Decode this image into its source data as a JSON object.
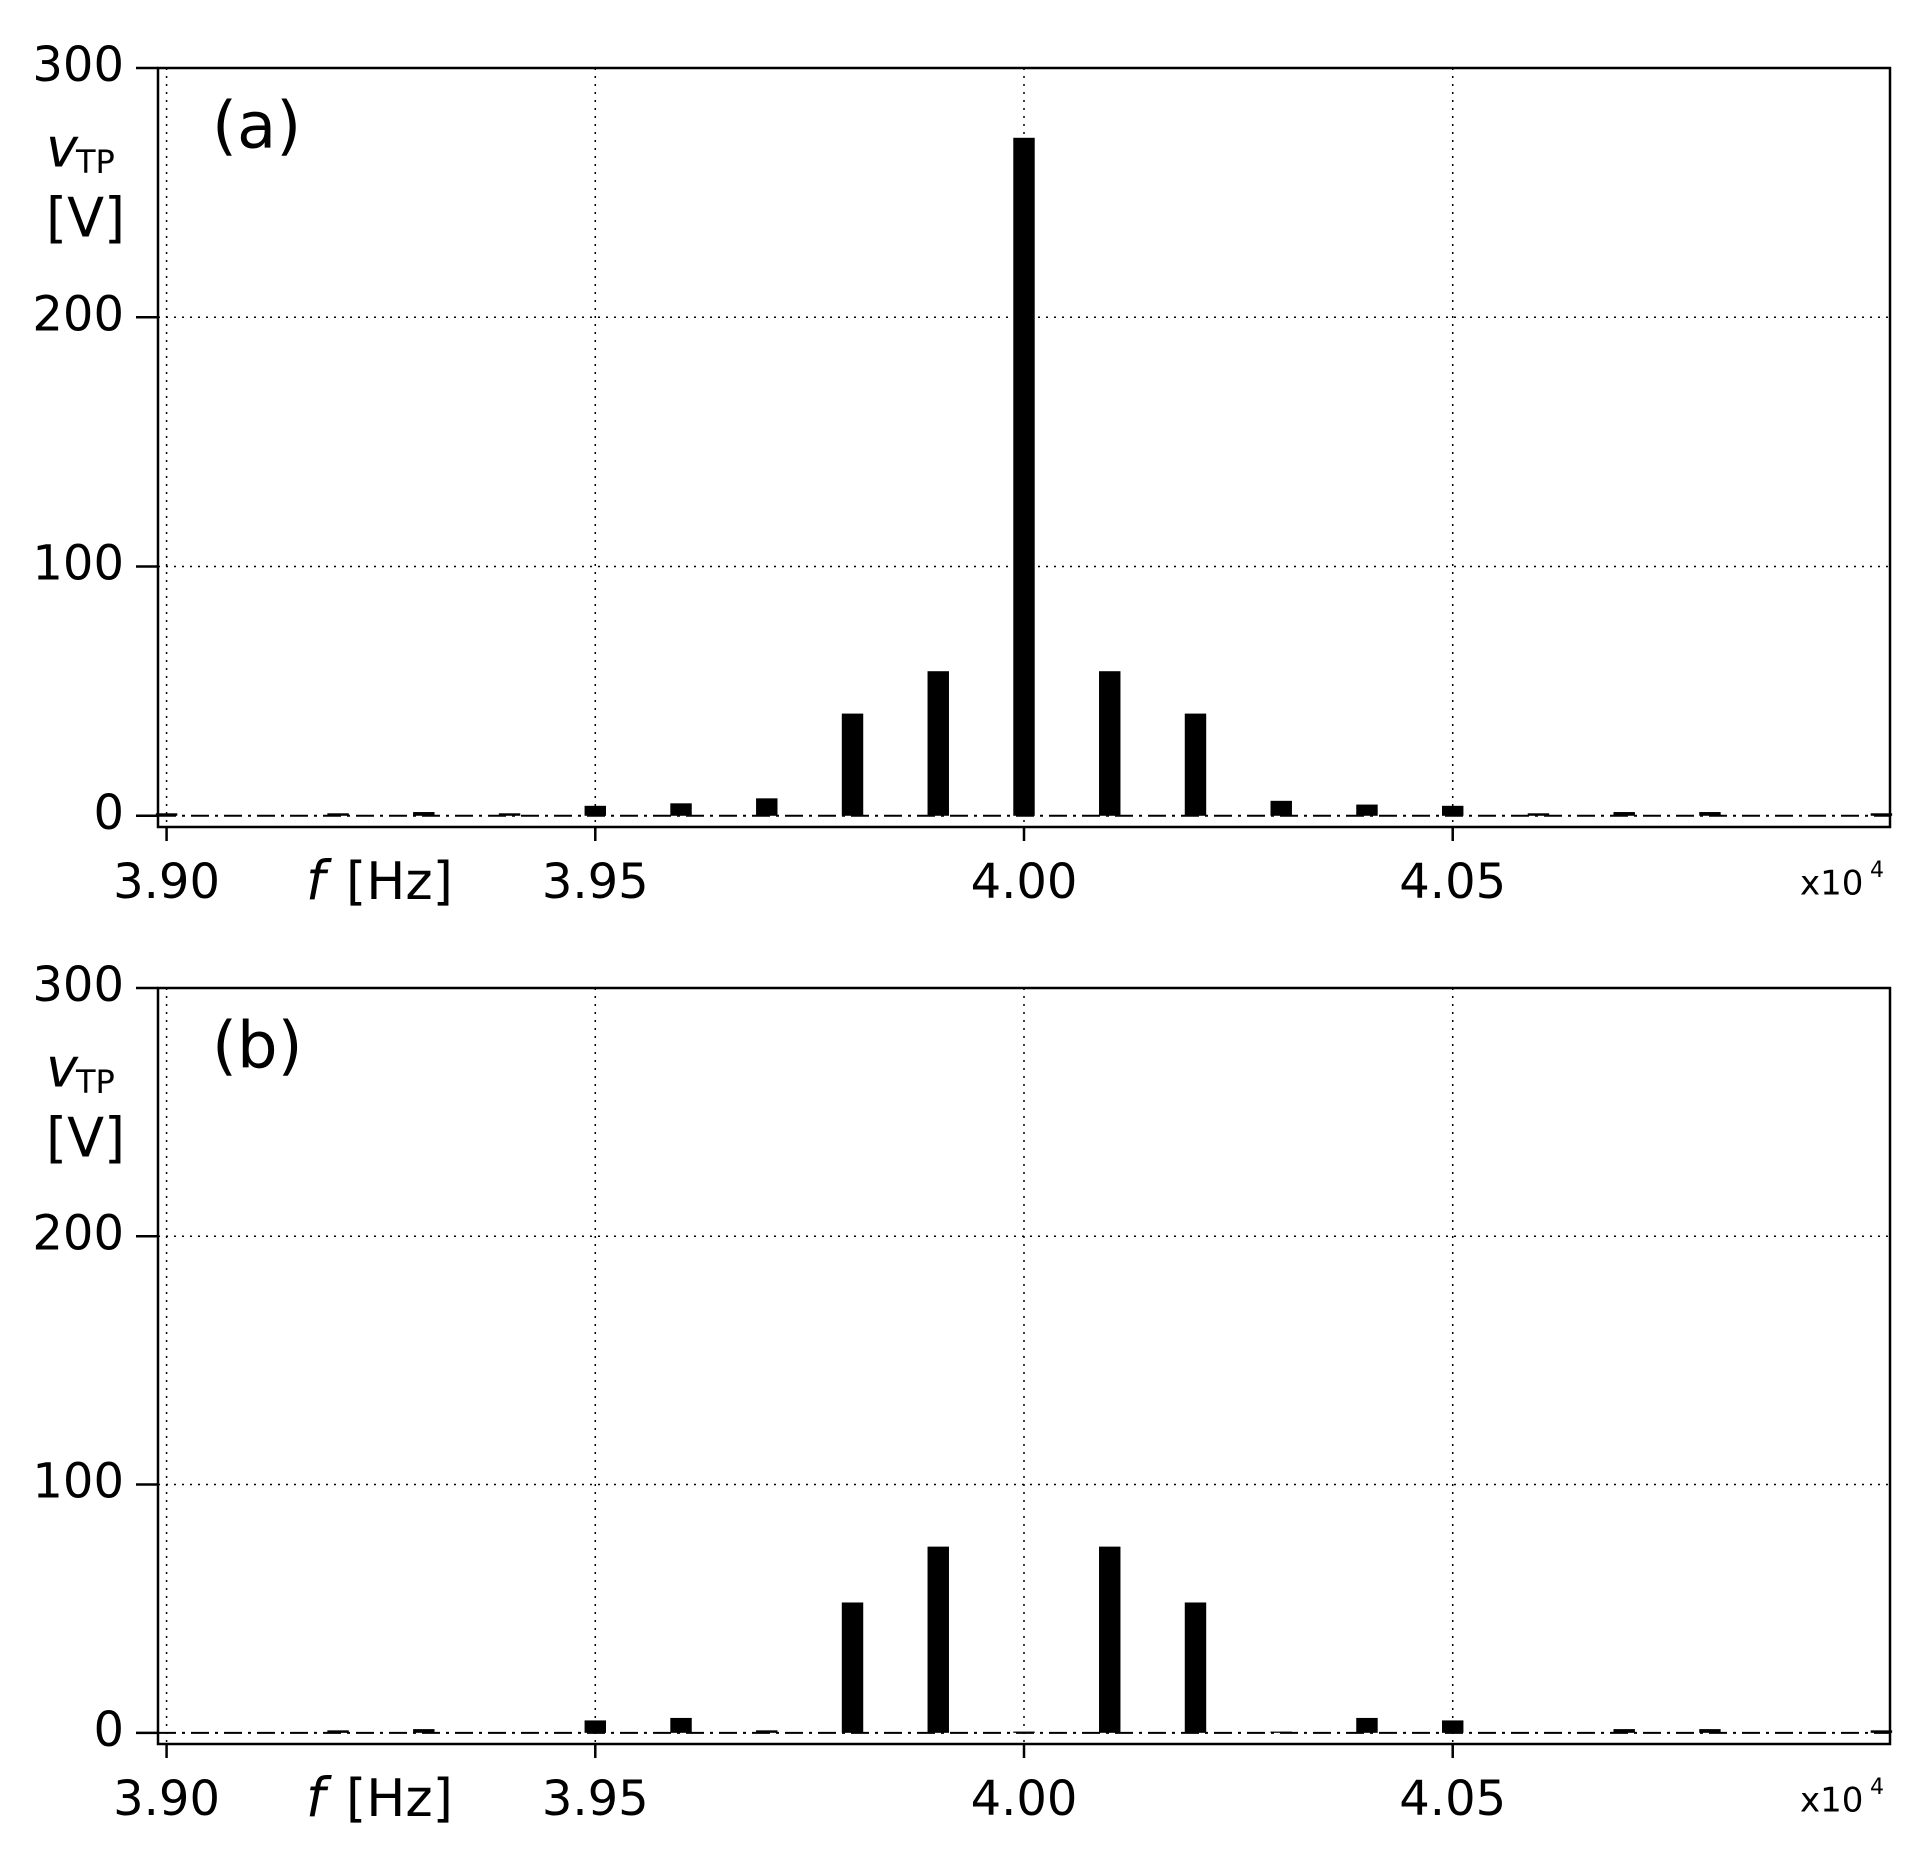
{
  "chart_data": [
    {
      "type": "bar",
      "annotation": "(a)",
      "ylabel": "v",
      "ylabel_sub": "TP",
      "ylabel_unit": "[V]",
      "xlabel": "f",
      "xlabel_unit": "[Hz]",
      "x_multiplier": "x10",
      "x_multiplier_exp": "4",
      "x": [
        3.9,
        3.91,
        3.92,
        3.93,
        3.94,
        3.95,
        3.96,
        3.97,
        3.98,
        3.99,
        4.0,
        4.01,
        4.02,
        4.03,
        4.04,
        4.05,
        4.06,
        4.07,
        4.08,
        4.09,
        4.1
      ],
      "values": [
        1,
        0,
        1,
        1.5,
        1,
        4,
        5,
        7,
        41,
        58,
        272,
        58,
        41,
        6,
        4.5,
        4,
        1,
        1.5,
        1.5,
        0,
        1
      ],
      "color": "#000000",
      "grid": true,
      "xlim": [
        3.899,
        4.101
      ],
      "ylim": [
        -4.5,
        300
      ],
      "xticks": [
        {
          "value": 3.9,
          "label": "3.90"
        },
        {
          "value": 3.95,
          "label": "3.95"
        },
        {
          "value": 4.0,
          "label": "4.00"
        },
        {
          "value": 4.05,
          "label": "4.05"
        }
      ],
      "yticks": [
        0,
        100,
        200,
        300
      ]
    },
    {
      "type": "bar",
      "annotation": "(b)",
      "ylabel": "v",
      "ylabel_sub": "TP",
      "ylabel_unit": "[V]",
      "xlabel": "f",
      "xlabel_unit": "[Hz]",
      "x_multiplier": "x10",
      "x_multiplier_exp": "4",
      "x": [
        3.9,
        3.91,
        3.92,
        3.93,
        3.94,
        3.95,
        3.96,
        3.97,
        3.98,
        3.99,
        4.0,
        4.01,
        4.02,
        4.03,
        4.04,
        4.05,
        4.06,
        4.07,
        4.08,
        4.09,
        4.1
      ],
      "values": [
        0,
        0,
        1,
        1.5,
        0,
        5,
        6,
        1,
        52.5,
        75,
        0.5,
        75,
        52.5,
        0.5,
        6,
        5,
        0,
        1.5,
        1.5,
        0,
        1
      ],
      "color": "#000000",
      "grid": true,
      "xlim": [
        3.899,
        4.101
      ],
      "ylim": [
        -4.5,
        300
      ],
      "xticks": [
        {
          "value": 3.9,
          "label": "3.90"
        },
        {
          "value": 3.95,
          "label": "3.95"
        },
        {
          "value": 4.0,
          "label": "4.00"
        },
        {
          "value": 4.05,
          "label": "4.05"
        }
      ],
      "yticks": [
        0,
        100,
        200,
        300
      ]
    }
  ]
}
